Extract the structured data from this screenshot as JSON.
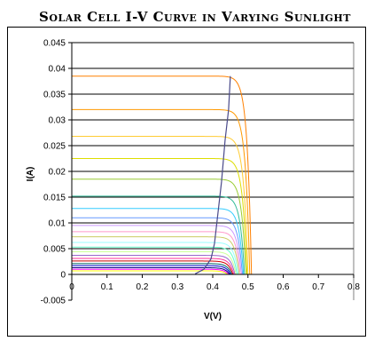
{
  "chart_data": {
    "type": "line",
    "title": "Solar Cell I-V Curve in Varying Sunlight",
    "xlabel": "V(V)",
    "ylabel": "I(A)",
    "xlim": [
      0,
      0.8
    ],
    "ylim": [
      -0.005,
      0.045
    ],
    "x_ticks": [
      "0",
      "0.1",
      "0.2",
      "0.3",
      "0.4",
      "0.5",
      "0.6",
      "0.7",
      "0.8"
    ],
    "y_ticks": [
      "-0.005",
      "0",
      "0.005",
      "0.01",
      "0.015",
      "0.02",
      "0.025",
      "0.03",
      "0.035",
      "0.04",
      "0.045"
    ],
    "grid": "horizontal",
    "legend": "none",
    "series": [
      {
        "color": "#ff8000",
        "isc": 0.0385,
        "voc": 0.51
      },
      {
        "color": "#ff9900",
        "isc": 0.032,
        "voc": 0.505
      },
      {
        "color": "#ffcc33",
        "isc": 0.0268,
        "voc": 0.5
      },
      {
        "color": "#dddd00",
        "isc": 0.0225,
        "voc": 0.497
      },
      {
        "color": "#99cc33",
        "isc": 0.0185,
        "voc": 0.494
      },
      {
        "color": "#33bb99",
        "isc": 0.0152,
        "voc": 0.49
      },
      {
        "color": "#33ccff",
        "isc": 0.0128,
        "voc": 0.487
      },
      {
        "color": "#6699ff",
        "isc": 0.011,
        "voc": 0.484
      },
      {
        "color": "#cc99ff",
        "isc": 0.0095,
        "voc": 0.481
      },
      {
        "color": "#ff99cc",
        "isc": 0.0083,
        "voc": 0.478
      },
      {
        "color": "#cccc66",
        "isc": 0.0073,
        "voc": 0.475
      },
      {
        "color": "#99ffff",
        "isc": 0.0062,
        "voc": 0.472
      },
      {
        "color": "#66ffcc",
        "isc": 0.0053,
        "voc": 0.469
      },
      {
        "color": "#ccff99",
        "isc": 0.0044,
        "voc": 0.466
      },
      {
        "color": "#9966cc",
        "isc": 0.0037,
        "voc": 0.463
      },
      {
        "color": "#ff3399",
        "isc": 0.0031,
        "voc": 0.46
      },
      {
        "color": "#cc0000",
        "isc": 0.0026,
        "voc": 0.457
      },
      {
        "color": "#006666",
        "isc": 0.0021,
        "voc": 0.454
      },
      {
        "color": "#0000cc",
        "isc": 0.0017,
        "voc": 0.451
      },
      {
        "color": "#000080",
        "isc": 0.0013,
        "voc": 0.448
      },
      {
        "color": "#ff00ff",
        "isc": 0.001,
        "voc": 0.445
      },
      {
        "color": "#ffff00",
        "isc": 0.0007,
        "voc": 0.442
      }
    ],
    "mpp_line": {
      "color": "#4a4a8a",
      "v": [
        0.35,
        0.375,
        0.395,
        0.405,
        0.41,
        0.415,
        0.42,
        0.425,
        0.43,
        0.435,
        0.445,
        0.45
      ],
      "i": [
        0.0001,
        0.001,
        0.003,
        0.006,
        0.009,
        0.012,
        0.015,
        0.018,
        0.022,
        0.026,
        0.032,
        0.0385
      ]
    }
  }
}
